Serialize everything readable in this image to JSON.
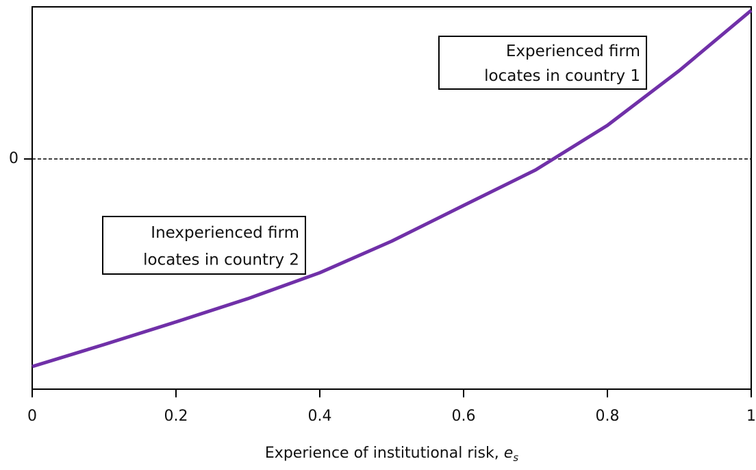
{
  "chart_data": {
    "type": "line",
    "x": [
      0,
      0.1,
      0.2,
      0.3,
      0.4,
      0.5,
      0.6,
      0.7,
      0.8,
      0.9,
      1.0
    ],
    "series": [
      {
        "color": "#7030a8",
        "values": [
          -1.0,
          -0.894,
          -0.785,
          -0.673,
          -0.548,
          -0.396,
          -0.224,
          -0.053,
          0.162,
          0.426,
          0.716
        ]
      }
    ],
    "xlim": [
      0,
      1
    ],
    "xticks": [
      0,
      0.2,
      0.4,
      0.6,
      0.8,
      1
    ],
    "ylim": [
      -1.109,
      0.733
    ],
    "yticks": [
      0
    ],
    "grid": true,
    "x_label": {
      "text": "Experience of institutional risk,",
      "symbol": "e",
      "subscript": "s"
    },
    "annotations": [
      {
        "lines": [
          "Experienced firm",
          "locates in country 1"
        ]
      },
      {
        "lines": [
          "Inexperienced firm",
          "locates in country 2"
        ]
      }
    ]
  }
}
